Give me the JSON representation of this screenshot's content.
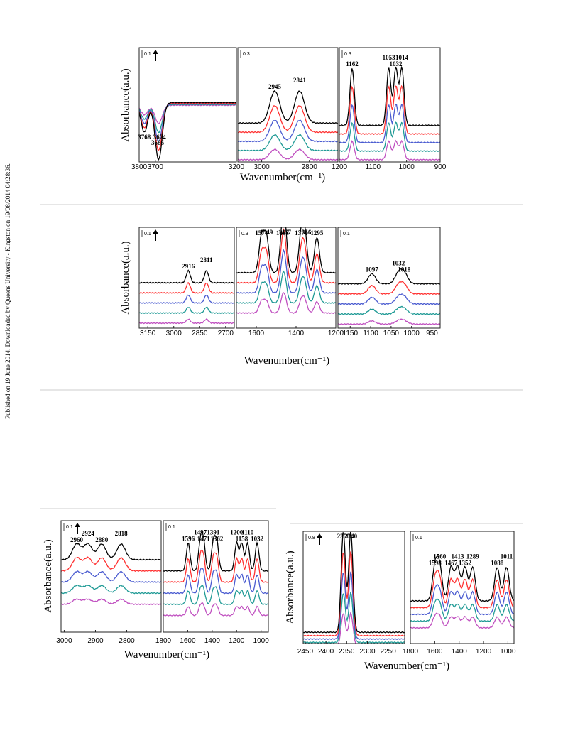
{
  "side_note": "Published on 19 June 2014. Downloaded by Queens University - Kingston on 19/08/2014 04:28:36.",
  "series_colors": [
    "#000000",
    "#ff3030",
    "#4a5bd0",
    "#1f9a95",
    "#c050c0"
  ],
  "figures": [
    {
      "ylabel": "Absorbance(a.u.)",
      "xlabel": "Wavenumber(cm⁻¹)",
      "panels": [
        {
          "scale": "0.1",
          "arrow": true,
          "xlim": [
            3800,
            3200
          ],
          "xticks": [
            3800,
            3700,
            3200
          ],
          "peaks": [
            3768,
            3686,
            3674
          ]
        },
        {
          "scale": "0.3",
          "xlim": [
            3100,
            2680
          ],
          "xticks": [
            3000,
            2800
          ],
          "peaks": [
            2945,
            2841
          ]
        },
        {
          "scale": "0.3",
          "xlim": [
            1200,
            900
          ],
          "xticks": [
            1200,
            1100,
            1000,
            900
          ],
          "peaks": [
            1162,
            1053,
            1032,
            1014
          ]
        }
      ]
    },
    {
      "ylabel": "Absorbance(a.u.)",
      "xlabel": "Wavenumber(cm⁻¹)",
      "panels": [
        {
          "scale": "0.1",
          "arrow": true,
          "xlim": [
            3200,
            2650
          ],
          "xticks": [
            3150,
            3000,
            2850,
            2700
          ],
          "peaks": [
            2916,
            2811
          ]
        },
        {
          "scale": "0.3",
          "xlim": [
            1700,
            1200
          ],
          "xticks": [
            1600,
            1400,
            1200
          ],
          "peaks": [
            1574,
            1549,
            1468,
            1457,
            1374,
            1356,
            1295
          ]
        },
        {
          "scale": "0.1",
          "xlim": [
            1180,
            930
          ],
          "xticks": [
            1150,
            1100,
            1050,
            1000,
            950
          ],
          "peaks": [
            1097,
            1032,
            1018
          ]
        }
      ]
    },
    {
      "ylabel": "Absorbance(a.u.)",
      "xlabel": "Wavenumber(cm⁻¹)",
      "panels": [
        {
          "scale": "0.1",
          "arrow": true,
          "xlim": [
            3010,
            2690
          ],
          "xticks": [
            3000,
            2900,
            2800
          ],
          "peaks": [
            2960,
            2924,
            2880,
            2818
          ]
        },
        {
          "scale": "0.1",
          "xlim": [
            1800,
            940
          ],
          "xticks": [
            1800,
            1600,
            1400,
            1200,
            1000
          ],
          "peaks": [
            1596,
            1497,
            1471,
            1391,
            1362,
            1200,
            1158,
            1110,
            1032
          ]
        }
      ]
    },
    {
      "ylabel": "Absorbance(a.u.)",
      "xlabel": "Wavenumber(cm⁻¹)",
      "panels": [
        {
          "scale": "0.8",
          "arrow": true,
          "xlim": [
            2455,
            2210
          ],
          "xticks": [
            2450,
            2400,
            2350,
            2300,
            2250
          ],
          "peaks": [
            2358,
            2340
          ]
        },
        {
          "scale": "0.1",
          "xlim": [
            1800,
            950
          ],
          "xticks": [
            1800,
            1600,
            1400,
            1200,
            1000
          ],
          "peaks": [
            1598,
            1560,
            1467,
            1413,
            1352,
            1289,
            1088,
            1011
          ]
        }
      ]
    }
  ]
}
